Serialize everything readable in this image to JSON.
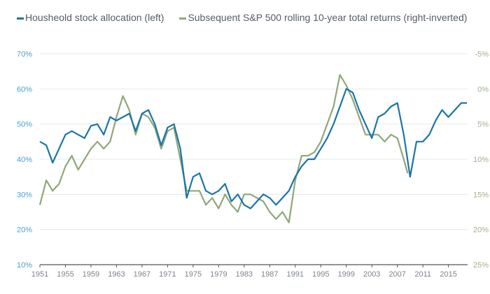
{
  "chart_data": {
    "type": "line",
    "title": "",
    "legend_placement": "top-left",
    "grid": true,
    "x_ticks": [
      "1951",
      "1955",
      "1959",
      "1963",
      "1967",
      "1971",
      "1975",
      "1979",
      "1983",
      "1987",
      "1991",
      "1995",
      "1999",
      "2003",
      "2007",
      "2011",
      "2015"
    ],
    "xlim": [
      1951,
      2018
    ],
    "left_axis": {
      "ticks": [
        "70%",
        "60%",
        "50%",
        "40%",
        "30%",
        "20%",
        "10%"
      ],
      "ylim": [
        10,
        70
      ],
      "color": "#4a9fd0"
    },
    "right_axis": {
      "ticks": [
        "-5%",
        "0%",
        "5%",
        "10%",
        "15%",
        "20%",
        "25%"
      ],
      "ylim": [
        -5,
        25
      ],
      "inverted": true,
      "color": "#9fb28a"
    },
    "series": [
      {
        "name": "Housheold stock allocation (left)",
        "axis": "left",
        "color": "#1b75a6",
        "x": [
          1951,
          1952,
          1953,
          1954,
          1955,
          1956,
          1957,
          1958,
          1959,
          1960,
          1961,
          1962,
          1963,
          1964,
          1965,
          1966,
          1967,
          1968,
          1969,
          1970,
          1971,
          1972,
          1973,
          1974,
          1975,
          1976,
          1977,
          1978,
          1979,
          1980,
          1981,
          1982,
          1983,
          1984,
          1985,
          1986,
          1987,
          1988,
          1989,
          1990,
          1991,
          1992,
          1993,
          1994,
          1995,
          1996,
          1997,
          1998,
          1999,
          2000,
          2001,
          2002,
          2003,
          2004,
          2005,
          2006,
          2007,
          2008,
          2009,
          2010,
          2011,
          2012,
          2013,
          2014,
          2015,
          2016,
          2017,
          2017.9
        ],
        "values": [
          45,
          44,
          39,
          43,
          47,
          48,
          47,
          46,
          49.5,
          50,
          47,
          52,
          51,
          52,
          53,
          48,
          53,
          54,
          50,
          44,
          49,
          50,
          43,
          29,
          35,
          36,
          31,
          30,
          31,
          33,
          28,
          30,
          27,
          26,
          28,
          30,
          29,
          27,
          29,
          31,
          35,
          38,
          40,
          40,
          43,
          46,
          50,
          55,
          60,
          59,
          54,
          50,
          46,
          52,
          53,
          55,
          56,
          47,
          35,
          45,
          45,
          47,
          51,
          54,
          52,
          54,
          56,
          56
        ]
      },
      {
        "name": "Subsequent S&P 500 rolling 10-year total returns (right-inverted)",
        "axis": "right",
        "color": "#8fa877",
        "x": [
          1951,
          1952,
          1953,
          1954,
          1955,
          1956,
          1957,
          1958,
          1959,
          1960,
          1961,
          1962,
          1963,
          1964,
          1965,
          1966,
          1967,
          1968,
          1969,
          1970,
          1971,
          1972,
          1973,
          1974,
          1975,
          1976,
          1977,
          1978,
          1979,
          1980,
          1981,
          1982,
          1983,
          1984,
          1985,
          1986,
          1987,
          1988,
          1989,
          1990,
          1991,
          1992,
          1993,
          1994,
          1995,
          1996,
          1997,
          1998,
          1999,
          2000,
          2001,
          2002,
          2003,
          2004,
          2005,
          2006,
          2007,
          2008,
          2008.6
        ],
        "values": [
          16.5,
          13,
          14.5,
          13.5,
          11,
          9.5,
          11.5,
          10,
          8.5,
          7.5,
          8.5,
          7.5,
          4,
          1,
          3,
          6.5,
          3.5,
          4,
          5.5,
          8.5,
          6,
          5.5,
          10,
          14.5,
          14.5,
          14.5,
          16.5,
          15.5,
          17,
          15,
          16.5,
          17.5,
          15,
          15,
          15.5,
          16,
          17.5,
          18.5,
          17.5,
          19,
          13,
          9.5,
          9.5,
          9,
          7.5,
          5,
          2.5,
          -2,
          -0.5,
          1.5,
          4,
          6.5,
          6.5,
          6.5,
          7.5,
          6.5,
          7,
          10,
          12
        ]
      }
    ]
  }
}
